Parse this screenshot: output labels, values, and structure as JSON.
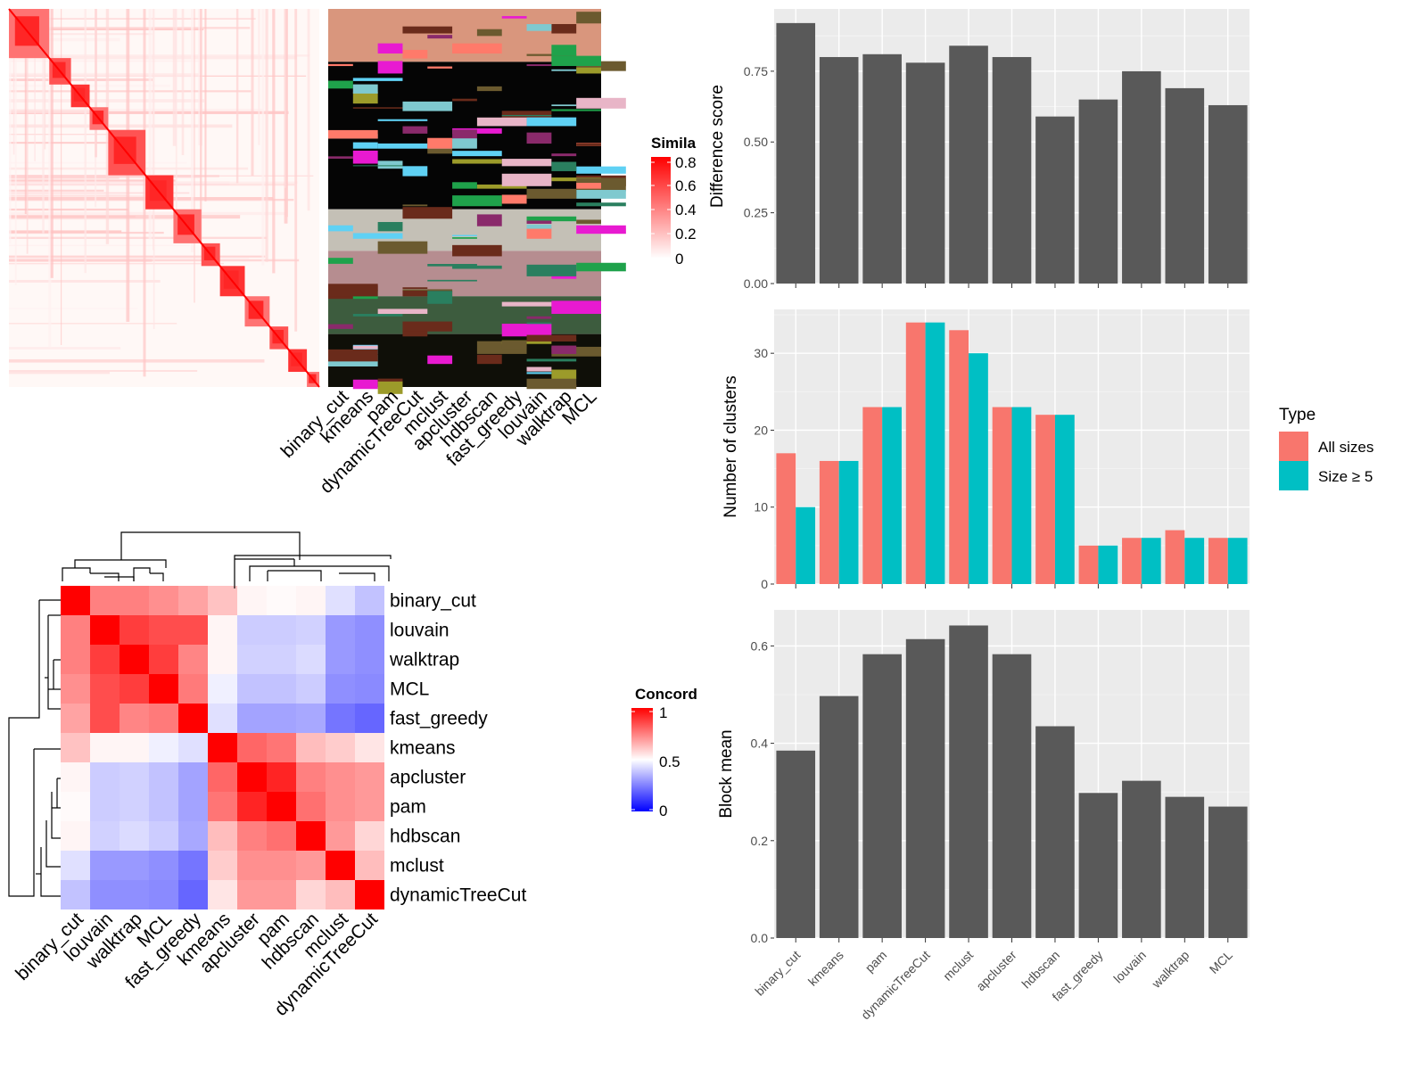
{
  "chart_data": [
    {
      "type": "heatmap",
      "id": "similarity-heatmap",
      "legend_title": "Simila",
      "legend_ticks": [
        "0.8",
        "0.6",
        "0.4",
        "0.2",
        "0"
      ],
      "legend_range": [
        0,
        0.8
      ],
      "colors": {
        "low": "#ffffff",
        "high": "#ff0000"
      },
      "diagonal_blocks": [
        [
          0,
          0.13
        ],
        [
          0.13,
          0.2
        ],
        [
          0.2,
          0.26
        ],
        [
          0.26,
          0.32
        ],
        [
          0.32,
          0.44
        ],
        [
          0.44,
          0.53
        ],
        [
          0.53,
          0.62
        ],
        [
          0.62,
          0.68
        ],
        [
          0.68,
          0.76
        ],
        [
          0.76,
          0.84
        ],
        [
          0.84,
          0.9
        ],
        [
          0.9,
          0.96
        ],
        [
          0.96,
          1.0
        ]
      ],
      "grid": false
    },
    {
      "type": "heatmap",
      "id": "cluster-membership-matrix",
      "columns": [
        "binary_cut",
        "kmeans",
        "pam",
        "dynamicTreeCut",
        "mclust",
        "apcluster",
        "hdbscan",
        "fast_greedy",
        "louvain",
        "walktrap",
        "MCL"
      ],
      "row_groups": [
        {
          "range": [
            0,
            0.14
          ],
          "color": "#d9967d"
        },
        {
          "range": [
            0.14,
            0.53
          ],
          "color": "#050505"
        },
        {
          "range": [
            0.53,
            0.64
          ],
          "color": "#c4c0b6"
        },
        {
          "range": [
            0.64,
            0.76
          ],
          "color": "#b68d90"
        },
        {
          "range": [
            0.76,
            0.86
          ],
          "color": "#3d5c3e"
        },
        {
          "range": [
            0.86,
            1.0
          ],
          "color": "#0f0f08"
        }
      ],
      "accent_colors": [
        "#6b5a2f",
        "#1fa24b",
        "#9c9b2a",
        "#e8b5c7",
        "#7fc9cf",
        "#ff7a6a",
        "#5fd1f4",
        "#e81ad1",
        "#6a2b1b",
        "#8a2a6b",
        "#2a7f5f"
      ]
    },
    {
      "type": "heatmap",
      "id": "concordance-heatmap",
      "legend_title": "Concord",
      "legend_ticks": [
        "1",
        "0.5",
        "0"
      ],
      "legend_range": [
        0,
        1
      ],
      "colors": {
        "low": "#0000ff",
        "mid": "#ffffff",
        "high": "#ff0000"
      },
      "labels": [
        "binary_cut",
        "louvain",
        "walktrap",
        "MCL",
        "fast_greedy",
        "kmeans",
        "apcluster",
        "pam",
        "hdbscan",
        "mclust",
        "dynamicTreeCut"
      ],
      "values": [
        [
          1.0,
          0.75,
          0.75,
          0.72,
          0.68,
          0.62,
          0.52,
          0.51,
          0.52,
          0.44,
          0.38
        ],
        [
          0.75,
          1.0,
          0.88,
          0.85,
          0.85,
          0.52,
          0.4,
          0.4,
          0.41,
          0.3,
          0.28
        ],
        [
          0.75,
          0.88,
          1.0,
          0.88,
          0.74,
          0.52,
          0.41,
          0.41,
          0.43,
          0.3,
          0.28
        ],
        [
          0.72,
          0.85,
          0.88,
          1.0,
          0.76,
          0.47,
          0.38,
          0.38,
          0.4,
          0.28,
          0.27
        ],
        [
          0.68,
          0.85,
          0.74,
          0.76,
          1.0,
          0.44,
          0.32,
          0.32,
          0.33,
          0.23,
          0.2
        ],
        [
          0.62,
          0.52,
          0.52,
          0.47,
          0.44,
          1.0,
          0.8,
          0.77,
          0.63,
          0.6,
          0.55
        ],
        [
          0.52,
          0.4,
          0.41,
          0.38,
          0.32,
          0.8,
          1.0,
          0.93,
          0.75,
          0.72,
          0.7
        ],
        [
          0.51,
          0.4,
          0.41,
          0.38,
          0.32,
          0.77,
          0.93,
          1.0,
          0.78,
          0.72,
          0.7
        ],
        [
          0.52,
          0.41,
          0.43,
          0.4,
          0.33,
          0.63,
          0.75,
          0.78,
          1.0,
          0.7,
          0.58
        ],
        [
          0.44,
          0.3,
          0.3,
          0.28,
          0.23,
          0.6,
          0.72,
          0.72,
          0.7,
          1.0,
          0.63
        ],
        [
          0.38,
          0.28,
          0.28,
          0.27,
          0.2,
          0.55,
          0.7,
          0.7,
          0.58,
          0.63,
          1.0
        ]
      ]
    },
    {
      "type": "bar",
      "id": "difference-score-chart",
      "categories": [
        "binary_cut",
        "kmeans",
        "pam",
        "dynamicTreeCut",
        "mclust",
        "apcluster",
        "hdbscan",
        "fast_greedy",
        "louvain",
        "walktrap",
        "MCL"
      ],
      "values": [
        0.92,
        0.8,
        0.81,
        0.78,
        0.84,
        0.8,
        0.59,
        0.65,
        0.75,
        0.69,
        0.63
      ],
      "ylabel": "Difference score",
      "ylim": [
        0,
        0.97
      ],
      "yticks": [
        0,
        0.25,
        0.5,
        0.75
      ],
      "ytick_labels": [
        "0.00",
        "0.25",
        "0.50",
        "0.75"
      ],
      "bar_color": "#595959",
      "grid": true
    },
    {
      "type": "bar",
      "id": "number-of-clusters-chart",
      "categories": [
        "binary_cut",
        "kmeans",
        "pam",
        "dynamicTreeCut",
        "mclust",
        "apcluster",
        "hdbscan",
        "fast_greedy",
        "louvain",
        "walktrap",
        "MCL"
      ],
      "series": [
        {
          "name": "All sizes",
          "color": "#f8766d",
          "values": [
            17,
            16,
            23,
            34,
            33,
            23,
            22,
            5,
            6,
            7,
            6
          ]
        },
        {
          "name": "Size ≥ 5",
          "color": "#00bfc4",
          "values": [
            10,
            16,
            23,
            34,
            30,
            23,
            22,
            5,
            6,
            6,
            6
          ]
        }
      ],
      "ylabel": "Number of clusters",
      "ylim": [
        0,
        35.7
      ],
      "yticks": [
        0,
        10,
        20,
        30
      ],
      "ytick_labels": [
        "0",
        "10",
        "20",
        "30"
      ],
      "legend_title": "Type",
      "legend_position": "right",
      "grid": true
    },
    {
      "type": "bar",
      "id": "block-mean-chart",
      "categories": [
        "binary_cut",
        "kmeans",
        "pam",
        "dynamicTreeCut",
        "mclust",
        "apcluster",
        "hdbscan",
        "fast_greedy",
        "louvain",
        "walktrap",
        "MCL"
      ],
      "values": [
        0.385,
        0.497,
        0.583,
        0.614,
        0.642,
        0.583,
        0.435,
        0.298,
        0.323,
        0.29,
        0.27
      ],
      "ylabel": "Block mean",
      "ylim": [
        0,
        0.674
      ],
      "yticks": [
        0,
        0.2,
        0.4,
        0.6
      ],
      "ytick_labels": [
        "0.0",
        "0.2",
        "0.4",
        "0.6"
      ],
      "bar_color": "#595959",
      "grid": true
    }
  ]
}
